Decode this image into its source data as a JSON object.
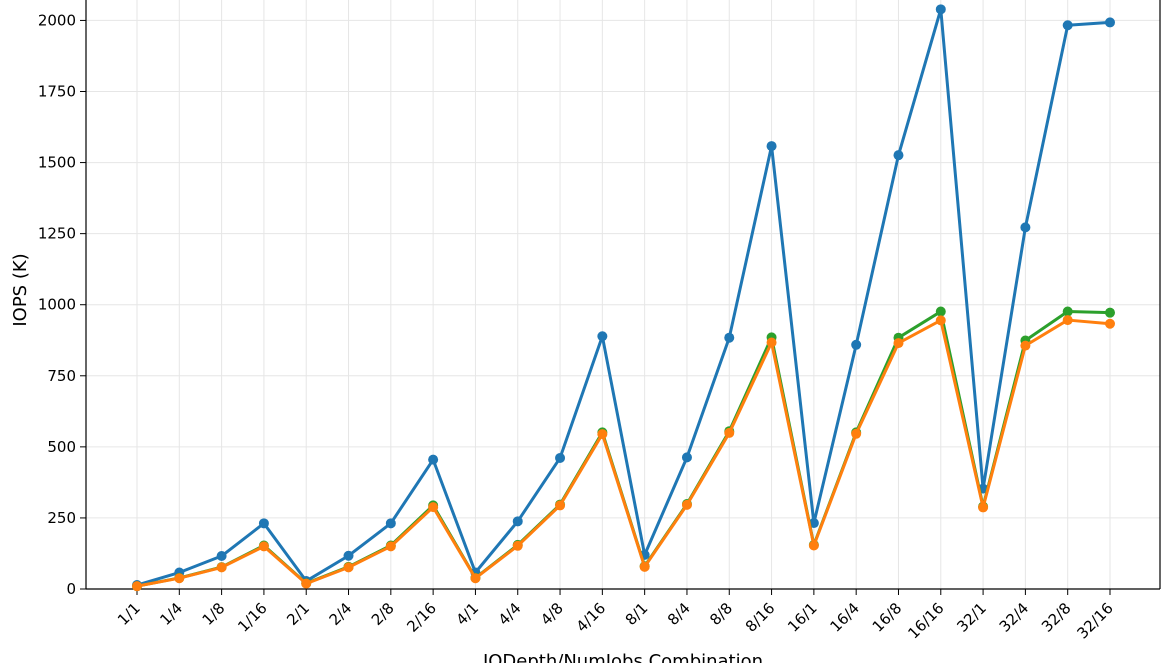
{
  "chart_data": {
    "type": "line",
    "title": "",
    "xlabel": "IODepth/NumJobs Combination",
    "ylabel": "IOPS (K)",
    "ylim": [
      0,
      2100
    ],
    "yticks": [
      0,
      250,
      500,
      750,
      1000,
      1250,
      1500,
      1750,
      2000
    ],
    "grid": true,
    "categories": [
      "1/1",
      "1/4",
      "1/8",
      "1/16",
      "2/1",
      "2/4",
      "2/8",
      "2/16",
      "4/1",
      "4/4",
      "4/8",
      "4/16",
      "8/1",
      "8/4",
      "8/8",
      "8/16",
      "16/1",
      "16/4",
      "16/8",
      "16/16",
      "32/1",
      "32/4",
      "32/8",
      "32/16"
    ],
    "series": [
      {
        "color": "#1f77b4",
        "values": [
          14,
          58,
          116,
          231,
          28,
          117,
          231,
          455,
          58,
          238,
          461,
          889,
          120,
          463,
          884,
          1558,
          232,
          859,
          1526,
          2039,
          353,
          1272,
          1983,
          1993
        ]
      },
      {
        "color": "#2ca02c",
        "values": [
          10,
          39,
          77,
          153,
          20,
          78,
          153,
          294,
          39,
          155,
          297,
          551,
          80,
          299,
          555,
          885,
          155,
          551,
          884,
          976,
          290,
          874,
          976,
          972
        ]
      },
      {
        "color": "#ff7f0e",
        "values": [
          10,
          38,
          76,
          150,
          19,
          76,
          150,
          288,
          38,
          152,
          294,
          545,
          78,
          296,
          549,
          867,
          153,
          546,
          865,
          945,
          287,
          856,
          946,
          933
        ]
      }
    ]
  }
}
